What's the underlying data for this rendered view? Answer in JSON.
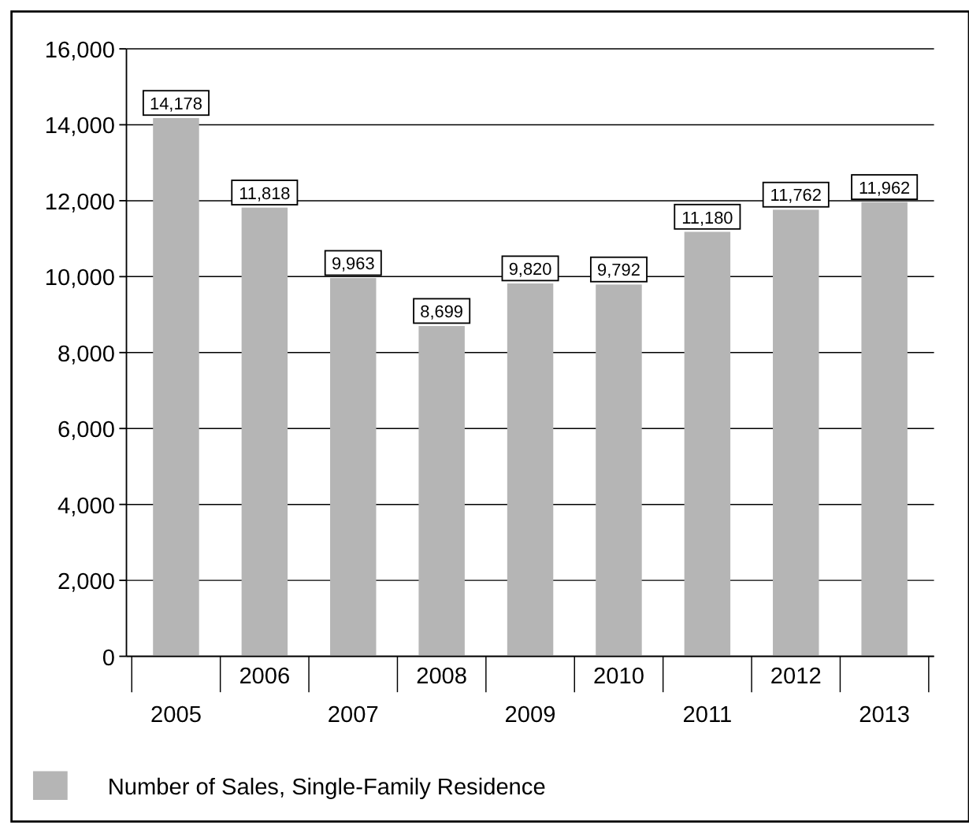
{
  "chart_data": {
    "type": "bar",
    "categories": [
      "2005",
      "2006",
      "2007",
      "2008",
      "2009",
      "2010",
      "2011",
      "2012",
      "2013"
    ],
    "series": [
      {
        "name": "Number of Sales, Single-Family Residence",
        "color": "#b5b5b5",
        "values": [
          14178,
          11818,
          9963,
          8699,
          9820,
          9792,
          11180,
          11762,
          11962
        ],
        "value_labels": [
          "14,178",
          "11,818",
          "9,963",
          "8,699",
          "9,820",
          "9,792",
          "11,180",
          "11,762",
          "11,962"
        ]
      }
    ],
    "ylim": [
      0,
      16000
    ],
    "yticks": [
      {
        "value": 0,
        "label": "0"
      },
      {
        "value": 2000,
        "label": "2,000"
      },
      {
        "value": 4000,
        "label": "4,000"
      },
      {
        "value": 6000,
        "label": "6,000"
      },
      {
        "value": 8000,
        "label": "8,000"
      },
      {
        "value": 10000,
        "label": "10,000"
      },
      {
        "value": 12000,
        "label": "12,000"
      },
      {
        "value": 14000,
        "label": "14,000"
      },
      {
        "value": 16000,
        "label": "16,000"
      }
    ],
    "grid": "y",
    "legend": "bottom"
  }
}
